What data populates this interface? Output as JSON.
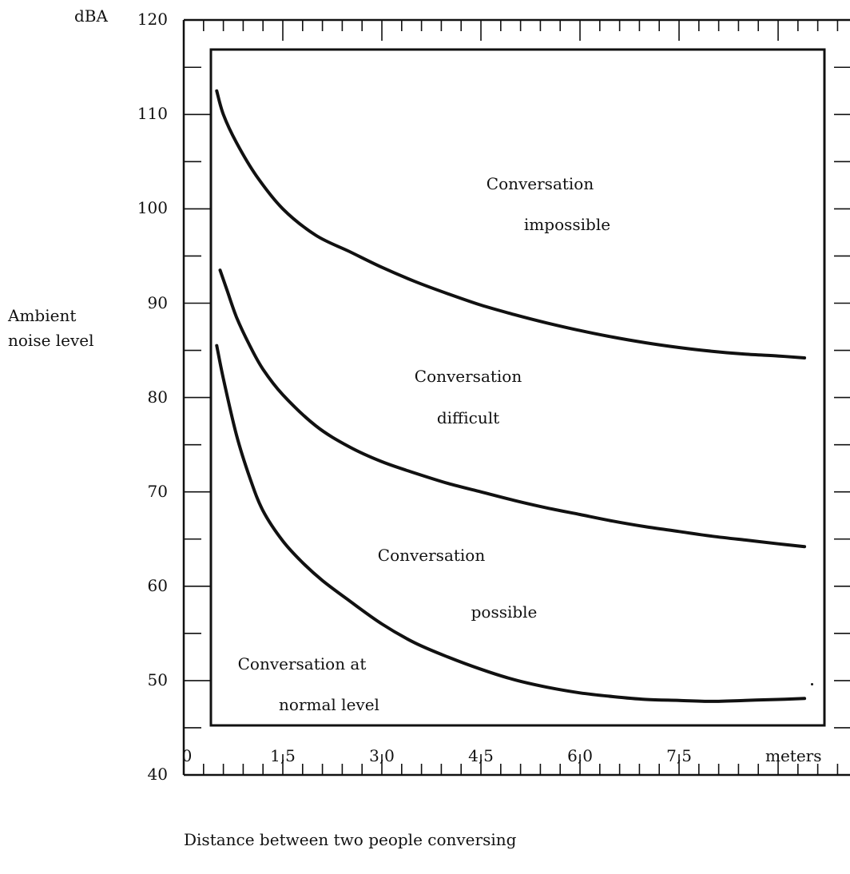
{
  "chart_data": {
    "type": "line",
    "unit_label": "dBA",
    "ylabel_lines": [
      "Ambient",
      "noise level"
    ],
    "xlabel": "Distance between two people conversing",
    "x_unit": "meters",
    "x_ticks": [
      0,
      1.5,
      3.0,
      4.5,
      6.0,
      7.5
    ],
    "x_tick_labels": [
      "0",
      "1,5",
      "3,0",
      "4,5",
      "6,0",
      "7,5"
    ],
    "y_ticks": [
      40,
      50,
      60,
      70,
      80,
      90,
      100,
      110,
      120
    ],
    "y_tick_labels": [
      "40",
      "50",
      "60",
      "70",
      "80",
      "90",
      "100",
      "110",
      "120"
    ],
    "xlim": [
      0,
      10
    ],
    "ylim": [
      40,
      120
    ],
    "series": [
      {
        "x": [
          0.5,
          0.6,
          0.8,
          1.1,
          1.5,
          2.0,
          2.5,
          3.0,
          3.5,
          4.0,
          4.5,
          5.0,
          5.5,
          6.0,
          6.5,
          7.0,
          7.5,
          8.0,
          8.5,
          9.0,
          9.4
        ],
        "values": [
          112.5,
          110.0,
          107.0,
          103.5,
          100.0,
          97.2,
          95.5,
          93.8,
          92.3,
          91.0,
          89.8,
          88.8,
          87.9,
          87.1,
          86.4,
          85.8,
          85.3,
          84.9,
          84.6,
          84.4,
          84.2
        ]
      },
      {
        "x": [
          0.55,
          0.65,
          0.8,
          1.0,
          1.2,
          1.5,
          2.0,
          2.5,
          3.0,
          3.5,
          4.0,
          4.5,
          5.0,
          5.5,
          6.0,
          6.5,
          7.0,
          7.5,
          8.0,
          8.5,
          9.0,
          9.4
        ],
        "values": [
          93.5,
          91.5,
          88.5,
          85.5,
          83.0,
          80.3,
          77.0,
          74.8,
          73.2,
          72.0,
          70.9,
          70.0,
          69.1,
          68.3,
          67.6,
          66.9,
          66.3,
          65.8,
          65.3,
          64.9,
          64.5,
          64.2
        ]
      },
      {
        "x": [
          0.5,
          0.6,
          0.8,
          1.0,
          1.2,
          1.5,
          1.8,
          2.1,
          2.5,
          3.0,
          3.5,
          4.0,
          4.5,
          5.0,
          5.5,
          6.0,
          6.5,
          7.0,
          7.5,
          8.0,
          8.5,
          9.0,
          9.4
        ],
        "values": [
          85.5,
          82.0,
          76.0,
          71.5,
          68.0,
          64.8,
          62.5,
          60.6,
          58.5,
          56.0,
          54.0,
          52.5,
          51.2,
          50.1,
          49.3,
          48.7,
          48.3,
          48.0,
          47.9,
          47.8,
          47.9,
          48.0,
          48.1
        ]
      }
    ],
    "regions": [
      {
        "lines": [
          "Conversation",
          "impossible"
        ]
      },
      {
        "lines": [
          "Conversation",
          "difficult"
        ]
      },
      {
        "lines": [
          "Conversation",
          "possible"
        ]
      },
      {
        "lines": [
          "Conversation at",
          "normal level"
        ]
      }
    ],
    "grid": false,
    "colors": {
      "ink": "#111111",
      "background": "#ffffff"
    }
  }
}
